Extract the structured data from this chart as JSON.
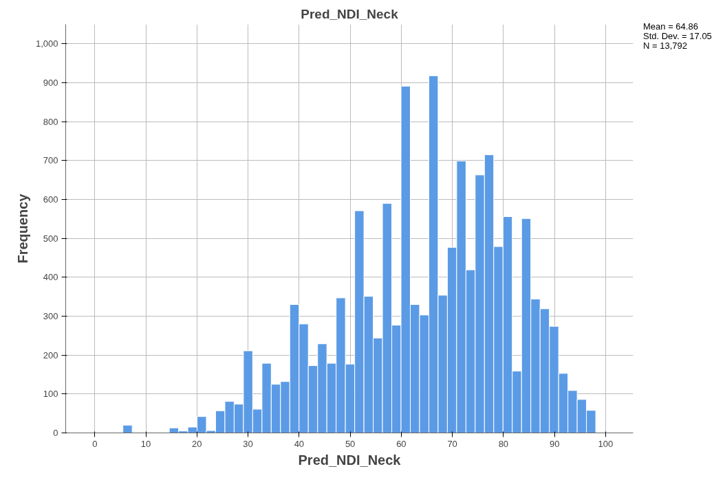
{
  "chart_data": {
    "type": "histogram",
    "title": "Pred_NDI_Neck",
    "xlabel": "Pred_NDI_Neck",
    "ylabel": "Frequency",
    "annotations": [
      "Mean = 64.86",
      "Std. Dev. = 17.05",
      "N = 13,792"
    ],
    "bins": [
      5.5,
      7.32,
      9.13,
      10.95,
      12.76,
      14.58,
      16.39,
      18.21,
      20.02,
      21.84,
      23.65,
      25.47,
      27.28,
      29.1,
      30.91,
      32.73,
      34.54,
      36.36,
      38.17,
      39.99,
      41.8,
      43.62,
      45.43,
      47.25,
      49.06,
      50.88,
      52.69,
      54.51,
      56.32,
      58.14,
      59.95,
      61.77,
      63.58,
      65.4,
      67.21,
      69.03,
      70.84,
      72.66,
      74.47,
      76.29,
      78.1,
      79.92,
      81.73,
      83.55,
      85.36,
      87.18,
      88.99,
      90.81,
      92.62,
      94.44,
      96.25,
      98.07
    ],
    "values": [
      20,
      0,
      0,
      0,
      null,
      13,
      5,
      15,
      42,
      6,
      57,
      81,
      74,
      211,
      61,
      179,
      125,
      132,
      330,
      280,
      173,
      229,
      179,
      347,
      177,
      571,
      351,
      244,
      590,
      277,
      891,
      330,
      303,
      918,
      354,
      477,
      699,
      419,
      663,
      715,
      479,
      556,
      159,
      551,
      344,
      319,
      274,
      153,
      109,
      86,
      58
    ],
    "color": "#5b9be6",
    "xlim": [
      -5.7,
      105.4
    ],
    "ylim": [
      0,
      1050
    ],
    "xticks": [
      0,
      10,
      20,
      30,
      40,
      50,
      60,
      70,
      80,
      90,
      100
    ],
    "yticks": [
      0,
      100,
      200,
      300,
      400,
      500,
      600,
      700,
      800,
      900,
      {
        "value": 1000,
        "label": "1,000"
      }
    ],
    "grid": true
  }
}
